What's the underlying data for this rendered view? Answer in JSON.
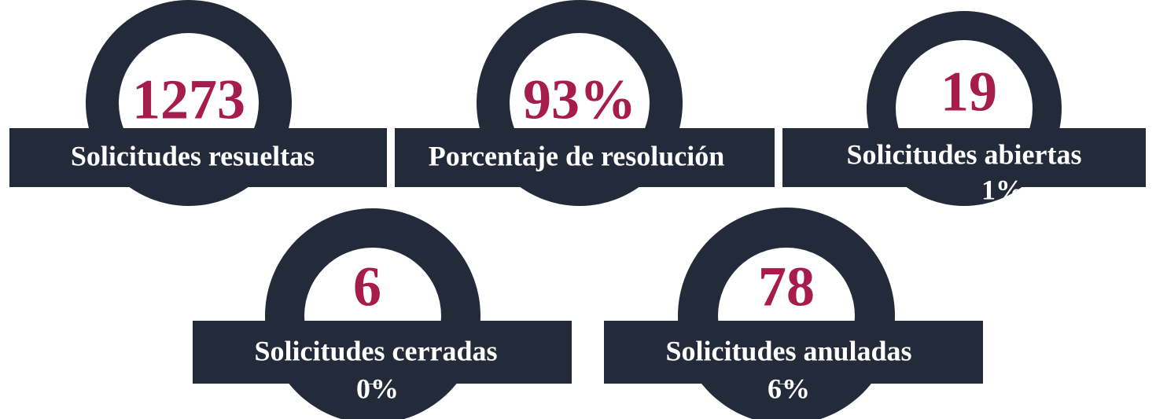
{
  "cards": [
    {
      "value": "1273",
      "label": "Solicitudes resueltas"
    },
    {
      "value": "93%",
      "label": "Porcentaje de resolución"
    },
    {
      "value": "19",
      "label": "Solicitudes abiertas",
      "share": "1%"
    },
    {
      "value": "6",
      "label": "Solicitudes cerradas",
      "share": "0%"
    },
    {
      "value": "78",
      "label": "Solicitudes anuladas",
      "share": "6%"
    }
  ]
}
